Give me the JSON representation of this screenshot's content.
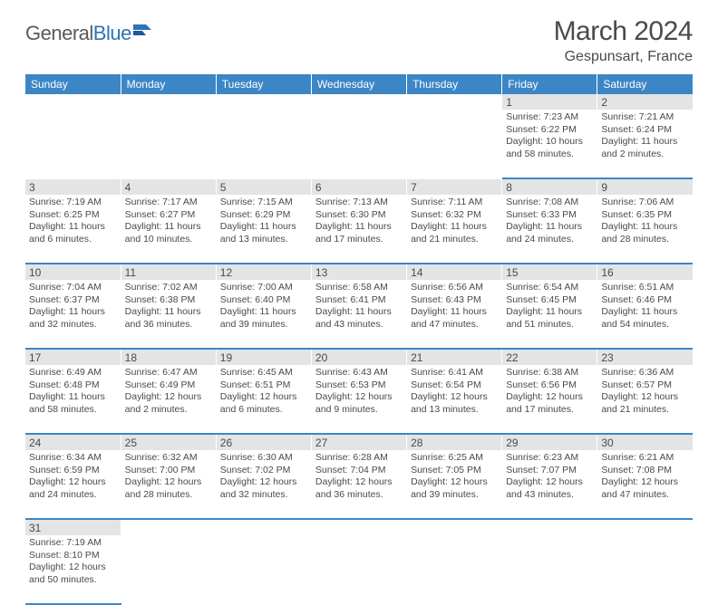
{
  "logo": {
    "part1": "General",
    "part2": "Blue"
  },
  "title": "March 2024",
  "location": "Gespunsart, France",
  "colors": {
    "header_bg": "#3d86c6",
    "header_text": "#ffffff",
    "daynum_bg": "#e4e4e4",
    "text": "#4a4a4a",
    "row_border": "#3d86c6",
    "logo_accent": "#2f72b8"
  },
  "weekdays": [
    "Sunday",
    "Monday",
    "Tuesday",
    "Wednesday",
    "Thursday",
    "Friday",
    "Saturday"
  ],
  "weeks": [
    [
      null,
      null,
      null,
      null,
      null,
      {
        "n": "1",
        "sr": "Sunrise: 7:23 AM",
        "ss": "Sunset: 6:22 PM",
        "d1": "Daylight: 10 hours",
        "d2": "and 58 minutes."
      },
      {
        "n": "2",
        "sr": "Sunrise: 7:21 AM",
        "ss": "Sunset: 6:24 PM",
        "d1": "Daylight: 11 hours",
        "d2": "and 2 minutes."
      }
    ],
    [
      {
        "n": "3",
        "sr": "Sunrise: 7:19 AM",
        "ss": "Sunset: 6:25 PM",
        "d1": "Daylight: 11 hours",
        "d2": "and 6 minutes."
      },
      {
        "n": "4",
        "sr": "Sunrise: 7:17 AM",
        "ss": "Sunset: 6:27 PM",
        "d1": "Daylight: 11 hours",
        "d2": "and 10 minutes."
      },
      {
        "n": "5",
        "sr": "Sunrise: 7:15 AM",
        "ss": "Sunset: 6:29 PM",
        "d1": "Daylight: 11 hours",
        "d2": "and 13 minutes."
      },
      {
        "n": "6",
        "sr": "Sunrise: 7:13 AM",
        "ss": "Sunset: 6:30 PM",
        "d1": "Daylight: 11 hours",
        "d2": "and 17 minutes."
      },
      {
        "n": "7",
        "sr": "Sunrise: 7:11 AM",
        "ss": "Sunset: 6:32 PM",
        "d1": "Daylight: 11 hours",
        "d2": "and 21 minutes."
      },
      {
        "n": "8",
        "sr": "Sunrise: 7:08 AM",
        "ss": "Sunset: 6:33 PM",
        "d1": "Daylight: 11 hours",
        "d2": "and 24 minutes."
      },
      {
        "n": "9",
        "sr": "Sunrise: 7:06 AM",
        "ss": "Sunset: 6:35 PM",
        "d1": "Daylight: 11 hours",
        "d2": "and 28 minutes."
      }
    ],
    [
      {
        "n": "10",
        "sr": "Sunrise: 7:04 AM",
        "ss": "Sunset: 6:37 PM",
        "d1": "Daylight: 11 hours",
        "d2": "and 32 minutes."
      },
      {
        "n": "11",
        "sr": "Sunrise: 7:02 AM",
        "ss": "Sunset: 6:38 PM",
        "d1": "Daylight: 11 hours",
        "d2": "and 36 minutes."
      },
      {
        "n": "12",
        "sr": "Sunrise: 7:00 AM",
        "ss": "Sunset: 6:40 PM",
        "d1": "Daylight: 11 hours",
        "d2": "and 39 minutes."
      },
      {
        "n": "13",
        "sr": "Sunrise: 6:58 AM",
        "ss": "Sunset: 6:41 PM",
        "d1": "Daylight: 11 hours",
        "d2": "and 43 minutes."
      },
      {
        "n": "14",
        "sr": "Sunrise: 6:56 AM",
        "ss": "Sunset: 6:43 PM",
        "d1": "Daylight: 11 hours",
        "d2": "and 47 minutes."
      },
      {
        "n": "15",
        "sr": "Sunrise: 6:54 AM",
        "ss": "Sunset: 6:45 PM",
        "d1": "Daylight: 11 hours",
        "d2": "and 51 minutes."
      },
      {
        "n": "16",
        "sr": "Sunrise: 6:51 AM",
        "ss": "Sunset: 6:46 PM",
        "d1": "Daylight: 11 hours",
        "d2": "and 54 minutes."
      }
    ],
    [
      {
        "n": "17",
        "sr": "Sunrise: 6:49 AM",
        "ss": "Sunset: 6:48 PM",
        "d1": "Daylight: 11 hours",
        "d2": "and 58 minutes."
      },
      {
        "n": "18",
        "sr": "Sunrise: 6:47 AM",
        "ss": "Sunset: 6:49 PM",
        "d1": "Daylight: 12 hours",
        "d2": "and 2 minutes."
      },
      {
        "n": "19",
        "sr": "Sunrise: 6:45 AM",
        "ss": "Sunset: 6:51 PM",
        "d1": "Daylight: 12 hours",
        "d2": "and 6 minutes."
      },
      {
        "n": "20",
        "sr": "Sunrise: 6:43 AM",
        "ss": "Sunset: 6:53 PM",
        "d1": "Daylight: 12 hours",
        "d2": "and 9 minutes."
      },
      {
        "n": "21",
        "sr": "Sunrise: 6:41 AM",
        "ss": "Sunset: 6:54 PM",
        "d1": "Daylight: 12 hours",
        "d2": "and 13 minutes."
      },
      {
        "n": "22",
        "sr": "Sunrise: 6:38 AM",
        "ss": "Sunset: 6:56 PM",
        "d1": "Daylight: 12 hours",
        "d2": "and 17 minutes."
      },
      {
        "n": "23",
        "sr": "Sunrise: 6:36 AM",
        "ss": "Sunset: 6:57 PM",
        "d1": "Daylight: 12 hours",
        "d2": "and 21 minutes."
      }
    ],
    [
      {
        "n": "24",
        "sr": "Sunrise: 6:34 AM",
        "ss": "Sunset: 6:59 PM",
        "d1": "Daylight: 12 hours",
        "d2": "and 24 minutes."
      },
      {
        "n": "25",
        "sr": "Sunrise: 6:32 AM",
        "ss": "Sunset: 7:00 PM",
        "d1": "Daylight: 12 hours",
        "d2": "and 28 minutes."
      },
      {
        "n": "26",
        "sr": "Sunrise: 6:30 AM",
        "ss": "Sunset: 7:02 PM",
        "d1": "Daylight: 12 hours",
        "d2": "and 32 minutes."
      },
      {
        "n": "27",
        "sr": "Sunrise: 6:28 AM",
        "ss": "Sunset: 7:04 PM",
        "d1": "Daylight: 12 hours",
        "d2": "and 36 minutes."
      },
      {
        "n": "28",
        "sr": "Sunrise: 6:25 AM",
        "ss": "Sunset: 7:05 PM",
        "d1": "Daylight: 12 hours",
        "d2": "and 39 minutes."
      },
      {
        "n": "29",
        "sr": "Sunrise: 6:23 AM",
        "ss": "Sunset: 7:07 PM",
        "d1": "Daylight: 12 hours",
        "d2": "and 43 minutes."
      },
      {
        "n": "30",
        "sr": "Sunrise: 6:21 AM",
        "ss": "Sunset: 7:08 PM",
        "d1": "Daylight: 12 hours",
        "d2": "and 47 minutes."
      }
    ],
    [
      {
        "n": "31",
        "sr": "Sunrise: 7:19 AM",
        "ss": "Sunset: 8:10 PM",
        "d1": "Daylight: 12 hours",
        "d2": "and 50 minutes."
      },
      null,
      null,
      null,
      null,
      null,
      null
    ]
  ]
}
